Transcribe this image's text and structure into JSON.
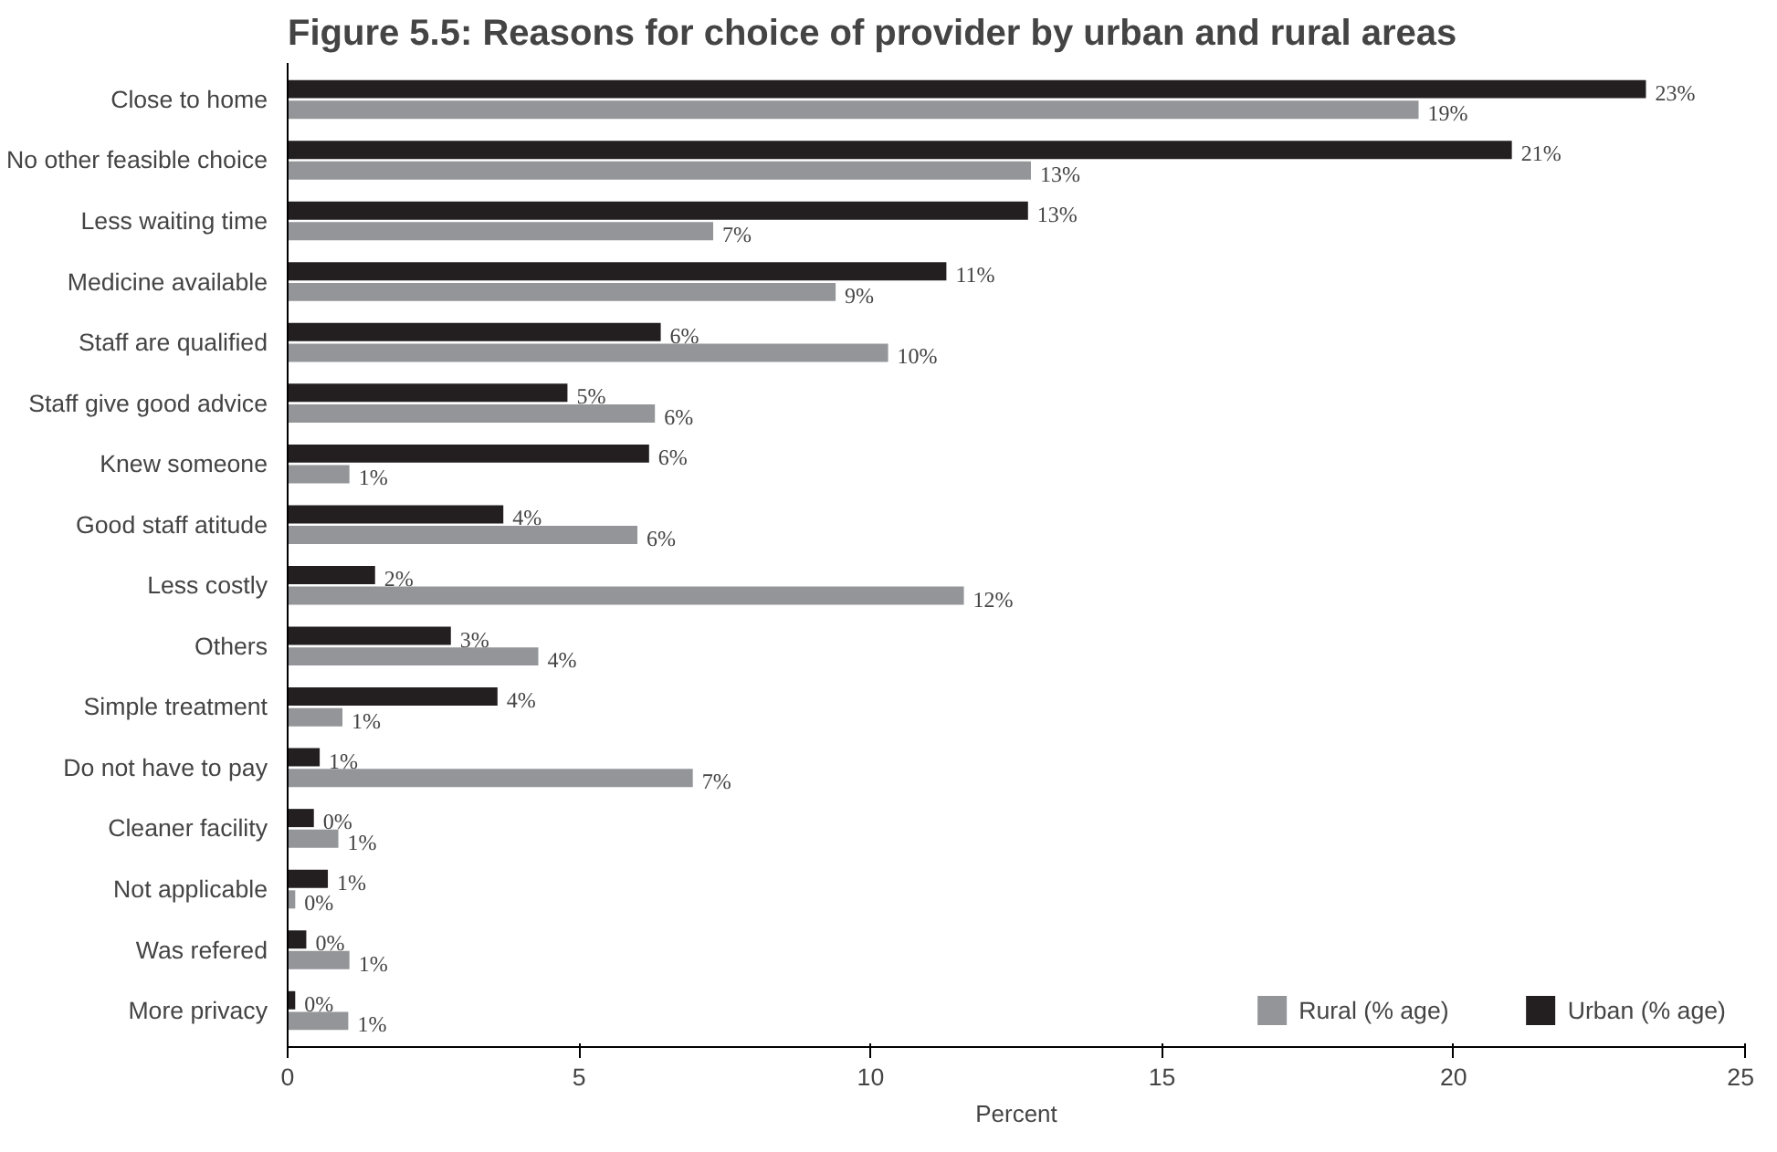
{
  "chart_data": {
    "type": "bar",
    "orientation": "horizontal",
    "title": "Figure 5.5: Reasons for choice of provider by urban and rural areas",
    "xlabel": "Percent",
    "categories": [
      "Close to home",
      "No other feasible choice",
      "Less waiting time",
      "Medicine available",
      "Staff are qualified",
      "Staff give good advice",
      "Knew someone",
      "Good staff atitude",
      "Less costly",
      "Others",
      "Simple treatment",
      "Do not have to pay",
      "Cleaner facility",
      "Not applicable",
      "Was refered",
      "More privacy"
    ],
    "series": [
      {
        "name": "Rural (% age)",
        "color": "#939598",
        "values": [
          19.4,
          12.75,
          7.3,
          9.4,
          10.3,
          6.3,
          1.06,
          6.0,
          11.6,
          4.3,
          0.94,
          6.95,
          0.87,
          0.13,
          1.06,
          1.04
        ],
        "value_labels": [
          "19%",
          "13%",
          "7%",
          "9%",
          "10%",
          "6%",
          "1%",
          "6%",
          "12%",
          "4%",
          "1%",
          "7%",
          "1%",
          "0%",
          "1%",
          "1%"
        ]
      },
      {
        "name": "Urban (% age)",
        "color": "#231f20",
        "values": [
          23.3,
          21.0,
          12.7,
          11.3,
          6.4,
          4.8,
          6.2,
          3.7,
          1.5,
          2.8,
          3.6,
          0.55,
          0.45,
          0.69,
          0.32,
          0.13
        ],
        "value_labels": [
          "23%",
          "21%",
          "13%",
          "11%",
          "6%",
          "5%",
          "6%",
          "4%",
          "2%",
          "3%",
          "4%",
          "1%",
          "0%",
          "1%",
          "0%",
          "0%"
        ]
      }
    ],
    "xlim": [
      0,
      25
    ],
    "xticks": [
      0,
      5,
      10,
      15,
      20,
      25
    ],
    "grid": false,
    "legend": "bottom right"
  }
}
